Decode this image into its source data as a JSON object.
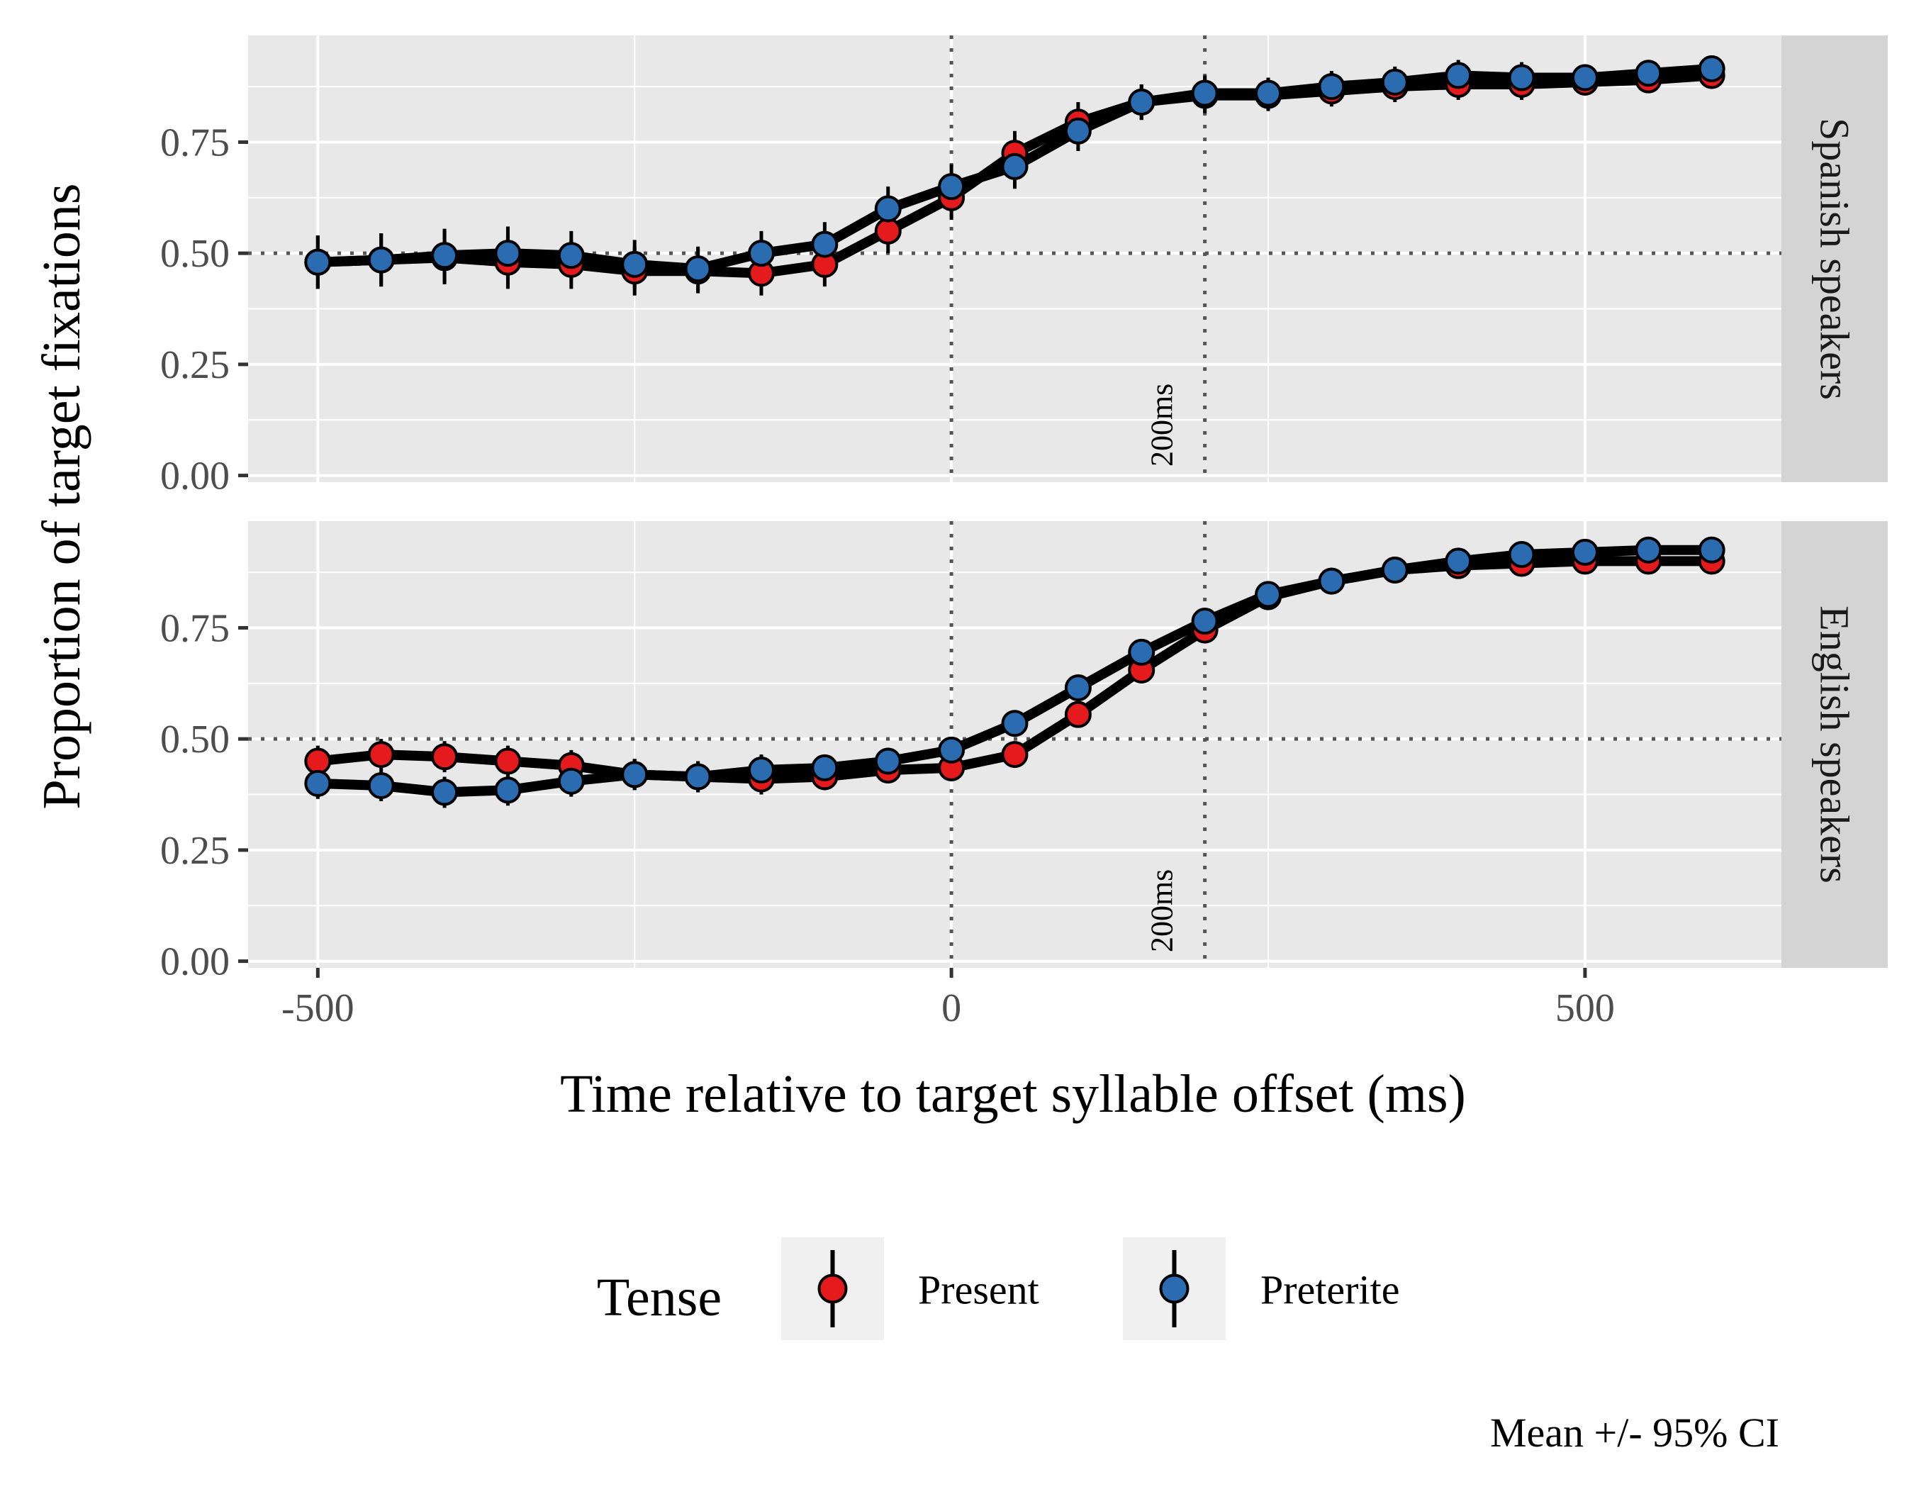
{
  "chart_data": {
    "type": "line",
    "xlabel": "Time relative to target syllable offset (ms)",
    "ylabel": "Proportion of target fixations",
    "caption": "Mean +/- 95% CI",
    "xlim": [
      -555,
      655
    ],
    "ylim": [
      -0.015,
      0.99
    ],
    "x_ticks": [
      -500,
      0,
      500
    ],
    "x_tick_labels": [
      "-500",
      "0",
      "500"
    ],
    "y_ticks": [
      0,
      0.25,
      0.5,
      0.75
    ],
    "y_tick_labels": [
      "0.00",
      "0.25",
      "0.50",
      "0.75"
    ],
    "grid": true,
    "legend": {
      "title": "Tense",
      "placement": "bottom",
      "entries": [
        "Present",
        "Preterite"
      ]
    },
    "reference_lines": {
      "horizontal_y": 0.5,
      "vertical_x": [
        0,
        200
      ],
      "annotation": "200ms"
    },
    "colors": {
      "present": "#e41a1c",
      "preterite": "#2b6cb0",
      "panel_bg": "#e8e8e8",
      "strip_bg": "#d4d4d4",
      "grid": "#ffffff",
      "line": "#000000"
    },
    "x": [
      -500,
      -450,
      -400,
      -350,
      -300,
      -250,
      -200,
      -150,
      -100,
      -50,
      0,
      50,
      100,
      150,
      200,
      250,
      300,
      350,
      400,
      450,
      500,
      550,
      600
    ],
    "panels": [
      {
        "strip": "Spanish speakers",
        "series": [
          {
            "name": "Present",
            "values": [
              0.48,
              0.485,
              0.49,
              0.48,
              0.475,
              0.46,
              0.46,
              0.455,
              0.475,
              0.55,
              0.625,
              0.725,
              0.795,
              0.84,
              0.855,
              0.855,
              0.865,
              0.875,
              0.88,
              0.88,
              0.885,
              0.89,
              0.9
            ],
            "ci": [
              0.06,
              0.06,
              0.06,
              0.06,
              0.055,
              0.055,
              0.05,
              0.05,
              0.05,
              0.05,
              0.05,
              0.05,
              0.045,
              0.04,
              0.04,
              0.035,
              0.035,
              0.035,
              0.035,
              0.035,
              0.03,
              0.03,
              0.03
            ]
          },
          {
            "name": "Preterite",
            "values": [
              0.48,
              0.485,
              0.495,
              0.5,
              0.495,
              0.475,
              0.465,
              0.5,
              0.52,
              0.6,
              0.65,
              0.695,
              0.775,
              0.84,
              0.86,
              0.86,
              0.875,
              0.885,
              0.9,
              0.895,
              0.895,
              0.905,
              0.915
            ],
            "ci": [
              0.06,
              0.06,
              0.06,
              0.06,
              0.055,
              0.055,
              0.05,
              0.05,
              0.05,
              0.05,
              0.05,
              0.05,
              0.045,
              0.04,
              0.04,
              0.035,
              0.035,
              0.035,
              0.035,
              0.035,
              0.03,
              0.03,
              0.03
            ]
          }
        ]
      },
      {
        "strip": "English speakers",
        "series": [
          {
            "name": "Present",
            "values": [
              0.45,
              0.465,
              0.46,
              0.45,
              0.44,
              0.42,
              0.415,
              0.41,
              0.415,
              0.43,
              0.435,
              0.465,
              0.555,
              0.655,
              0.745,
              0.82,
              0.855,
              0.88,
              0.89,
              0.895,
              0.9,
              0.9,
              0.9
            ],
            "ci": [
              0.035,
              0.035,
              0.035,
              0.035,
              0.035,
              0.035,
              0.035,
              0.035,
              0.03,
              0.03,
              0.03,
              0.03,
              0.03,
              0.03,
              0.025,
              0.025,
              0.025,
              0.025,
              0.025,
              0.02,
              0.02,
              0.02,
              0.02
            ]
          },
          {
            "name": "Preterite",
            "values": [
              0.4,
              0.395,
              0.38,
              0.385,
              0.405,
              0.42,
              0.415,
              0.43,
              0.435,
              0.45,
              0.475,
              0.535,
              0.615,
              0.695,
              0.765,
              0.825,
              0.855,
              0.88,
              0.9,
              0.915,
              0.92,
              0.925,
              0.925
            ],
            "ci": [
              0.035,
              0.035,
              0.035,
              0.035,
              0.035,
              0.035,
              0.035,
              0.035,
              0.03,
              0.03,
              0.03,
              0.03,
              0.03,
              0.03,
              0.025,
              0.025,
              0.025,
              0.025,
              0.025,
              0.02,
              0.02,
              0.02,
              0.02
            ]
          }
        ]
      }
    ]
  }
}
